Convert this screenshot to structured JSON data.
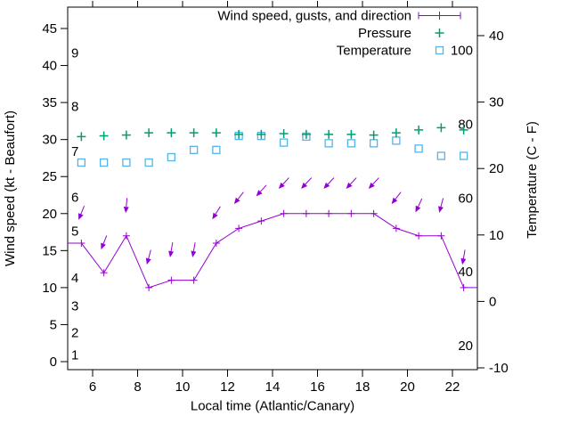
{
  "chart_data": {
    "type": "line",
    "title": "",
    "xlabel": "Local time (Atlantic/Canary)",
    "ylabel_left": "Wind speed (kt - Beaufort)",
    "ylabel_right": "Temperature (C - F)",
    "grid": false,
    "legend_position": "top-right-inside",
    "legend": [
      {
        "label": "Wind speed, gusts, and direction",
        "marker": "errorbar-line-plus",
        "color": "#9400d3"
      },
      {
        "label": "Pressure",
        "marker": "plus",
        "color": "#009e73"
      },
      {
        "label": "Temperature",
        "marker": "open-square",
        "color": "#56b4e9"
      }
    ],
    "x_ticks": [
      6,
      8,
      10,
      12,
      14,
      16,
      18,
      20,
      22
    ],
    "x_range_hours": [
      4.89,
      23.1
    ],
    "left_axis": {
      "label": "Wind speed (kt - Beaufort)",
      "ticks": [
        0,
        5,
        10,
        15,
        20,
        25,
        30,
        35,
        40,
        45
      ],
      "range": [
        -1.1,
        47.9
      ]
    },
    "right_axis": {
      "label": "Temperature (C - F)",
      "ticks": [
        -10,
        0,
        10,
        20,
        30,
        40
      ],
      "range": [
        -10.9,
        44.3
      ]
    },
    "x": [
      5.5,
      6.5,
      7.5,
      8.5,
      9.5,
      10.5,
      11.5,
      12.5,
      13.5,
      14.5,
      15.5,
      16.5,
      17.5,
      18.5,
      19.5,
      20.5,
      21.5,
      22.5
    ],
    "series": [
      {
        "name": "Wind speed (kt)",
        "color": "#9400d3",
        "axis": "left",
        "values": [
          16,
          12,
          17,
          10,
          11,
          11,
          16,
          18,
          19,
          20,
          20,
          20,
          20,
          20,
          18,
          17,
          17,
          10
        ],
        "edge_extension_left_kt": 16,
        "edge_extension_right_kt": 10
      },
      {
        "name": "Wind direction arrows (screen angle deg, 90 = down)",
        "color": "#9400d3",
        "values": [
          112,
          112,
          95,
          105,
          100,
          100,
          122,
          128,
          132,
          133,
          133,
          133,
          133,
          133,
          128,
          115,
          105,
          100
        ]
      },
      {
        "name": "Pressure (marker height on kt axis)",
        "color": "#009e73",
        "axis": "left",
        "values": [
          30.4,
          30.5,
          30.6,
          30.9,
          30.9,
          30.9,
          30.9,
          30.7,
          30.7,
          30.8,
          30.7,
          30.7,
          30.7,
          30.6,
          30.9,
          31.3,
          31.6,
          31.3
        ]
      },
      {
        "name": "Temperature (C)",
        "color": "#56b4e9",
        "axis": "right",
        "values": [
          20.9,
          20.9,
          20.9,
          20.9,
          21.7,
          22.8,
          22.8,
          24.9,
          24.9,
          23.9,
          24.8,
          23.8,
          23.8,
          23.8,
          24.2,
          23.0,
          21.9,
          21.9
        ]
      }
    ],
    "beaufort_labels": [
      {
        "text": "9",
        "kt": 41.7
      },
      {
        "text": "8",
        "kt": 34.5
      },
      {
        "text": "7",
        "kt": 28.4
      },
      {
        "text": "6",
        "kt": 22.2
      },
      {
        "text": "5",
        "kt": 17.6
      },
      {
        "text": "4",
        "kt": 11.3
      },
      {
        "text": "3",
        "kt": 7.5
      },
      {
        "text": "2",
        "kt": 3.9
      },
      {
        "text": "1",
        "kt": 0.9
      }
    ],
    "fahrenheit_labels": [
      {
        "text": "100",
        "f": 100
      },
      {
        "text": "80",
        "f": 80
      },
      {
        "text": "60",
        "f": 60
      },
      {
        "text": "40",
        "f": 40
      },
      {
        "text": "20",
        "f": 20
      }
    ],
    "colors": {
      "wind": "#9400d3",
      "pressure": "#009e73",
      "temperature": "#56b4e9",
      "axis": "#000000",
      "background": "#ffffff"
    }
  }
}
